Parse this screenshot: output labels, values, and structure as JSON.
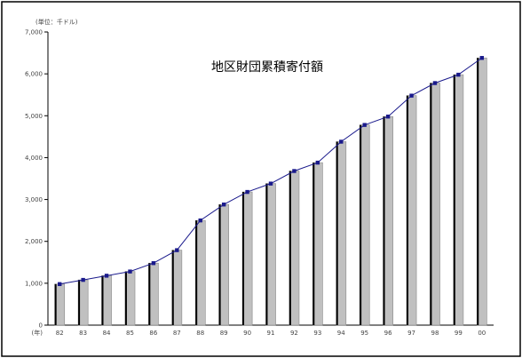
{
  "chart_data": {
    "type": "bar",
    "title": "地区財団累積寄付額",
    "unit_label": "(単位：千ドル)",
    "x_axis_prefix": "(年)",
    "categories": [
      "82",
      "83",
      "84",
      "85",
      "86",
      "87",
      "88",
      "89",
      "90",
      "91",
      "92",
      "93",
      "94",
      "95",
      "96",
      "97",
      "98",
      "99",
      "00"
    ],
    "values": [
      980,
      1080,
      1180,
      1280,
      1480,
      1790,
      2500,
      2880,
      3180,
      3380,
      3680,
      3880,
      4380,
      4780,
      4980,
      5480,
      5780,
      5980,
      6380
    ],
    "yticks": [
      0,
      1000,
      2000,
      3000,
      4000,
      5000,
      6000,
      7000
    ],
    "ytick_labels": [
      "0",
      "1,000",
      "2,000",
      "3,000",
      "4,000",
      "5,000",
      "6,000",
      "7,000"
    ],
    "ylim": [
      0,
      7000
    ],
    "grid": false,
    "overlay_line": true,
    "colors": {
      "bar_fill": "#c0c0c0",
      "bar_shadow": "#000000",
      "line": "#1a1a8c",
      "marker": "#1a1a8c"
    }
  }
}
